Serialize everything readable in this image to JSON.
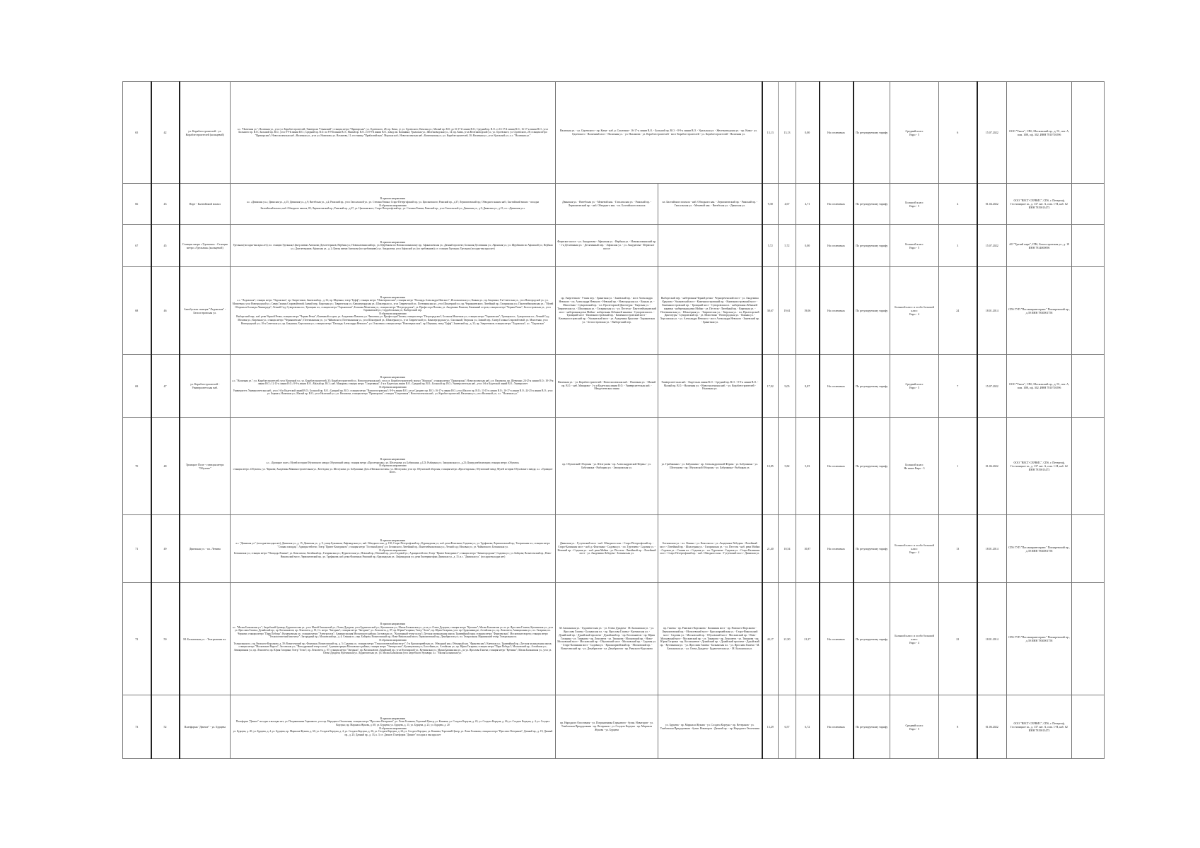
{
  "rows": [
    {
      "no": "65",
      "route": "42",
      "name": "ул. Кораблестроителей - ул. Кораблестроителей (кольцевой)",
      "path": "а.с. \"Наличная ул.\"; Наличная ул., угол ул. Кораблестроителей; Универсам \"Гаванский\"; станция метро \"Приморская\"; ул. Одоевского, 28; пр. Кима, уг. ул. Одоевского; Камская ул.; Малый пр. В.О. до 16-17-й линии В.О.; Средний пр. В.О. от 16-17-й линии В.О.; 16-17-я линии В.О., угол Большого пр. В.О.; Большой пр. В.О., угол 8-9-й линии В.О.; Средний пр. В.О. по 8-9-й линии В.О.; Малый пр. В.О. от 8-9-й линии В.О.; завод им. Калинина; Уральская ул.; Железноводская ул., 14; пр. Кима, угол Железноводской ул.; ул. Одоевского; ул. Одоевского, 28; станция метро \"Приморская\"; Новосмоленская наб.; Наличная ул., угол ул. Нахимова; ул. Нахимова, 11; гостиница \"Прибалтийская\"; Морская наб.; Новосмоленская наб.; Капитанская ул.; ул. Кораблестроителей, 30; Наличная ул., угол Уральской ул.; а.с. \"Наличная ул.\"",
      "fwd": "Наличная ул. - ул. Одоевского - пр. Кима - наб. р. Смоленки - 16-17-я линии В.О. - Большой пр. В.О. - 8-9-я линии В.О. - Уральская ул. - Железноводская ул. - пр. Кима - ул. Одоевского - Наличный мост - Наличная ул. - ул. Нахимова - ул. Кораблестроителей - мост Кораблестроителей - ул. Кораблестроителей - Наличная ул.",
      "back": "",
      "merged": true,
      "len": "13,13",
      "len_f": "13,13",
      "len_b": "0,00",
      "stops": "На остановках",
      "tariff": "По регулируемому тарифу",
      "bus_class": "Средний класс\nЕвро - 5",
      "count": "6",
      "date": "15.07.2022",
      "operator": "ООО \"Такси\", СПб, Московский пр., д. 91, лит. А, пом. 10Н, оф. 302, ИНН 7810716596"
    },
    {
      "no": "66",
      "route": "43",
      "name": "Порт - Балтийский вокзал",
      "path": "В прямом направлении\nа.с. «Двинская ул.»; Двинская ул., д.15; Двинская ул., д.9; Витебская ул., д.2; Рижский пр., угол Гапсальской ул.; ул. Степана Разина; Старо-Петергофский пр.; ул. Циолковского; Рижский пр., д.37; Лермонтовский пр.; Обводного канала наб.; Балтийский вокзал - посадка\nВ обратном направлении\nБалтийский вокзал; наб. Обводного канала, 85; Лермонтовский пр.; Рижский пр., д.37; ул. Циолковского; Старо-Петергофский пр.; ул. Степана Разина; Рижский пр., угол Гапсальской ул.; Двинская ул., д.9; Двинская ул., д.15; а.с. «Двинская ул.»",
      "fwd": "Двинская ул. - Витебская ул. - Межевой кан. - Гапсальская ул. - Рижский пр. - Лермонтовский пр. - наб. Обводного кан. - пл. Балтийского вокзала",
      "back": "пл. Балтийского вокзала - наб. Обводного кан. - Лермонтовский пр. - Рижский пр. - Гапсальская ул. - Межевой кан. - Витебская ул. - Двинская ул.",
      "merged": false,
      "len": "9,38",
      "len_f": "4,67",
      "len_b": "4,71",
      "stops": "На остановках",
      "tariff": "По регулируемому тарифу",
      "bus_class": "Большой класс\nЕвро - 5",
      "count": "4",
      "date": "01.04.2022",
      "operator": "ООО \"ВЕСТ-СЕРВИС\", СПб, г. Петергоф, Гостилицкое ш., д. 137 лит. А, пом. 1-Н, каб. 62 ИНН 7819013473"
    },
    {
      "no": "67",
      "route": "45",
      "name": "Станция метро «Удельная» - Станция метро «Удельная» (кольцевой)",
      "path": "В прямом направлении\nУдельная (посадка-высадка лет); пл. станции Удельная; Центр имени Антонова; Дом ветеранов; Вербная ул.; Новоколомяжский пр.; ул. Щербакова по Новоколомяжскому пр.; Афанасьевская ул.; Дачный проспект; Большая Десятинная ул.; Афонская ул.; ул. Щербакова по Афонской ул.; Вербная ул.; Дом ветеранов; Афонская ул., д. 2; Центр имени Антонова (по требованию); ул. Аккуратова, угол Афонской ул. (по требованию); ст. станции Удельная; Удельная (посадка-высадка нет)",
      "fwd": "Фермское шоссе - ул. Аккуратова - Афонская ул. - Вербная ул. - Новоколомяжский пр. - 1-я Десятинная ул. - Десятинный пер. - Афонская ул. - ул. Аккуратова - Фермское шоссе",
      "back": "",
      "merged": false,
      "len": "5,72",
      "len_f": "5,72",
      "len_b": "0,00",
      "stops": "На остановках",
      "tariff": "По регулируемому тарифу",
      "bus_class": "Большой класс\nЕвро - 5",
      "count": "3",
      "date": "15.07.2022",
      "operator": "АО \"Третий парк\", СПб, Белоостровская ул., д. 19 ИНН 7814000096"
    },
    {
      "no": "68",
      "route": "46",
      "name": "Автобусная станция \"Ладожская\" - Белоостровская ул.",
      "path": "В прямом направлении\nа.с. \"Ладожская\"; станция метро \"Ладожская\"; пр. Энергетиков, Заневский пр., д. 32; пр. Шаумяна, театр \"Буфф\"; станция метро \"Новочеркасская\"; станция метро \"Площадь Александра Невского\"; Исполкомская ул.; Конная ул.; пр. Бакунина; 8-я Советская ул., угол Новгородской ул.; ул. Моисеенко, угол Новгородской ул.; Сквер Галины Старовойтовой; Заячий пер.; Кирочная ул.; Таврическая ул.; Кавалергардская ул.; Шпалерная ул., угол Таврической ул.; Потемкинская ул., угол Шпалерной ул.; пр. Чернышевского; Литейный пр.; Гагаринская ул.; Пантелеймоновская ул.; \"Музей Обороны и Блокады Ленинграда\"; Летний Сад; Суворовская пл.; Троицкая пл.; станция метро \"Горьковская\"; Большая Монетная ул.; станция метро \"Петроградская\"; ул. Профессора Попова; ул. Академика Павлова; Каменный остров; станция метро \"Черная Речка\"; Белоостровская ул., угол Торжковской ул.; Сердобольская ул.; Выборгский пер.\nВ обратном направлении\nВыборгский пер.; наб. реки Черной Речки; станция метро \"Черная Речка\"; Каменный остров; ул. Академика Павлова; ул. Чапыгина; ул. Профессора Попова; станция метро \"Петроградская\"; Большая Монетная ул.; станция метро \"Горьковская\"; Троицкая пл.; Суворовская пл.; Летний Сад; Моховая ул.; Кирочная ул.; станция метро \"Чернышевская\"; Потемкинская ул.; ул. Чайковского; Потемкинская ул., угол Шпалерной ул.; Шпалерная ул., угол Таврической ул.; Кавалергардская ул.; Смольный; Тверская ул.; Заячий пер.; Сквер Галины Старовойтовой; ул. Моисеенко, угол Новгородской ул.; 10-я Советская ул.; пр. Бакунина; Херсонская ул.; станция метро \"Площадь Александра Невского\"; ул. Оскаленко; станция метро \"Новочеркасская\"; пр. Шаумяна, театр \"Буфф\"; Заневский пр., д. 32; пр. Энергетиков; станция метро \"Ладожская\"; а.с. \"Ладожская\"",
      "fwd": "пр. Энергетиков - Уткин пер. - Гранитная ул. - Заневский пр. - мост Александра Невского - пл. Александра Невского - Невский пр. - Новгородская ул. - Конная ул. - Моисеенко - Суворовский пр. - пл. Пролетарской Диктатуры - Тверская ул. - Таврическая ул. - Шпалерная ул. - Гагаринская ул. - ул. Пестеля - Пантелеймоновский мост - набережная реки Мойки - набережная Лебяжьей канавки - Суворовская пл. - Троицкий мост - Каменноостровский пр. - Каменноостровский мост - Каменноостровский пр. - Ушаковский мост - ул. Академика Крылова - Торжковская ул. - Белоостровская ул. - Выборгский пер.",
      "back": "Выборгский пер. - набережная Черной речки - Чернореченский мост - ул. Академика Крылова - Ушаковский мост - Каменноостровский пр. - Каменноостровский мост - Каменноостровский пр. - Троицкий мост - Суворовская пл. - набережная Лебяжьей канавки - набережная реки Мойки - ул. Пестеля - Литейный пр. - Кирочная ул. - Потемкинская ул. - Шпалерная ул. - Таврическая ул. - Тверская ул. - пл. Пролетарской Диктатуры - Суворовский пр. - ул. Моисеенко - Новгородская ул. - Конная ул. - Херсонская ул. - ул. Александра Невского - мост Александра Невского - Заневский пр. - Гранитная ул.",
      "merged": false,
      "len": "38,67",
      "len_f": "19,61",
      "len_b": "19,06",
      "stops": "На остановках",
      "tariff": "По регулируемому тарифу",
      "bus_class": "Большой класс и особо большой класс\nЕвро - 4",
      "count": "24",
      "date": "18.01.2014",
      "operator": "СПб ГУП \"Пассажиравтотранс\" Пискаревский пр., д.39 ИНН 7830001758"
    },
    {
      "no": "69",
      "route": "47",
      "name": "ул. Кораблестроителей - Университетская наб.",
      "path": "В прямом направлении\nа.с. \"Наличная ул.\"; ул. Кораблестроителей; угол Наличной ул.; ул. Кораблестроителей, 35; Кораблестроителей ул.; Новосмоленская наб.; угол ул. Кораблестроителей; вокзал \"Морская\"; станция метро \"Приморская\"; Новосмоленская наб.; ул. Нахимова, пр. Шевченко; 24-25-я линии В.О.; 18-19-я линии В.О.; 12-13-я линии В.О.; 8-9-я линии В.О.; Малый пр. В.О.; наб. Макарова; станция метро \"Спортивная\"; 1-я и Кадетская линии В.О.; Средний пр. В.О.; Большой пр. В.О.; Университетская наб., угол 1-й и Кадетской линий В.О.; Университет\nВ обратном направлении\nУниверситет; Университетская наб.; угол 1-й и Кадетской линий В.О.; Большой пр. В.О.; Средний пр. В.О.; станция метро \"Василеостровская\"; 8-9-я линии В.О.; угол Среднего пр. В.О.; 16-17-я линии В.О.; угол Малого пр. В.О.; 13-15-я линии В.О.; 16-17-я линии В.О.; 24-25-я линии В.О.; угол ул. Беринга; Наличная ул.; Малый пр. В.О.; угол Наличной ул.; ул. Нахимова, станция метро \"Приморская\"; станция \"Спортивная\"; Новосмоленская наб.; ул. Кораблестроителей, Наличная ул.; угол Наличной ул.; а.с. \"Наличная ул.\"",
      "fwd": "Наличная ул. - ул. Кораблестроителей - Новосмоленская наб. - Наличная ул. - Малый пр. В.О. - наб. Макарова - 1-я и Кадетская линии В.О. - Университетская наб. - Менделеевская линия",
      "back": "Университетская наб. - Кадетская линия В.О. - Средний пр. В.О. - 8-9-я линии В.О. - Малый пр. В.О. - Наличная ул. - Новосмоленская наб. - ул. Кораблестроителей - Наличная ул.",
      "merged": false,
      "len": "17,92",
      "len_f": "9,05",
      "len_b": "8,87",
      "stops": "На остановках",
      "tariff": "По регулируемому тарифу",
      "bus_class": "Средний класс\nЕвро - 5",
      "count": "7",
      "date": "15.07.2022",
      "operator": "ООО \"Такси\", СПб, Московский пр., д. 91, лит. А, пом. 10Н, оф. 302, ИНН 7810716596"
    },
    {
      "no": "70",
      "route": "48",
      "name": "Троицкое Поле - станция метро \"Обухово\"",
      "path": "В прямом направлении\nа.с. «Троицкое поле»; Музей истории Обуховского завода; Обуховский завод; станция метро «Пролетарская»; ул. Шелгунова; ул. Бабушкина, д.123; Рыбацкая ул.; Запорожская ул., д.23; Центр реабилитации; станция метро «Обухово»\nВ обратном направлении\nстанция метро «Обухово»; ул. Чернова; Академика Машиностроительная ул.; Коттеджи; ул. Шелгунова; ул. Бабушкина; Дом «Невская застава»; ул. Шелгунова; угол пр. Обуховской обороны; станция метро «Пролетарская»; Обуховский завод; Музей истории Обуховского завода; а.с. «Троицкое поле».",
      "fwd": "пр. Обуховской Обороны - ул. Шелгунова - пр. Александровской Фермы - ул. Бабушкина - Рыбацкая ул. - Запорожская ул.",
      "back": "ул. Грибакиных - ул. Бабушкина - пр. Александровской Фермы - ул. Бабушкина - ул. Шелгунова - пр. Обуховской Обороны - ул. Бабушкина - Рыбацкая ул.",
      "merged": false,
      "len": "10,85",
      "len_f": "5,82",
      "len_b": "5,03",
      "stops": "На остановках",
      "tariff": "По регулируемому тарифу",
      "bus_class": "Большой класс\nНе ниже Евро - 3",
      "count": "1",
      "date": "01.06.2022",
      "operator": "ООО \"ВЕСТ-СЕРВИС\", СПб, г. Петергоф, Гостилицкое ш., д. 137 лит. А, пом. 1-Н, каб. 62 ИНН 7819013473"
    },
    {
      "no": "71",
      "route": "49",
      "name": "Двинская ул. - пл. Ленина",
      "path": "В прямом направлении\nа.с. \"Двинская ул.\" (посадка-высадка нет); Двинская ул., д. 15; Двинская ул., д. 9; улица Бумажная; Лифляндская ул.; наб. Обводного кан., д. 150; Старо-Петергофский пр.; Курляндская ул.; наб. реки Фонтанки; Садовая ул.; ул. Труфанова; Лермонтовский пр.; Театральная пл.; станция метро \"Сенная площадь\"; Адмиралтейство; Театр \"Приют Комедианта\"; станция метро \"Гостиный двор\"; ул. Белинского; Литейный пр.; Пантелеймоновская ул.; Летний сад; Моховая ул.; ул. Чайковского; Боткинская ул.\nВ обратном направлении\nБоткинская ул.; станция метро \"Площадь Ленина\"; ул. Комсомола; Литейный пр.; Гагаринская ул.; Фурштатская ул.; Невский пр.; Невский пр., угол Садовой ул.; Адмиралтейство; Театр \"Приют Комедианта\"; станция метро \"Звенигородская\"; Садовая ул.; ул. Бойцова; Вознесенский пр.; Ново-Никольский мост; Лермонтовский пр.; ул. Труфанова; наб. реки Фонтанки; Рижский пр.; Курляндская ул.; Лифляндская ул.; река Екатерингофка; Двинская ул., д. 15; а.с. \"Двинская ул.\" (посадка-высадка нет)",
      "fwd": "Двинская ул. - Гутуевский мост - наб. Обводного кан. - Старо-Петергофский пр. - Старо-Калинкин мост - наб. р. Фонтанки - Садовая ул. - пл. Тургенева - Садовая ул. - Невский пр. - Садовая ул. - наб. реки Мойки - ул. Пестеля - Литейный пр. - Литейный мост - ул. Академика Лебедева - Боткинская ул.",
      "back": "Боткинская ул. - пл. Ленина - ул. Комсомола - ул. Академика Лебедева - Литейный мост - Литейный пр. - Шпалерная ул. - Гагаринская ул. - ул. Пестеля - наб. реки Мойки - Садовая ул. - Сенная пл. - Садовая ул. - пл. Тургенева - Садовая ул. - Старо-Калинкин мост - Старо-Петергофский пр. - наб. Обводного кан. - Гутуевский мост - Двинская ул.",
      "merged": false,
      "len": "21,40",
      "len_f": "10,54",
      "len_b": "10,87",
      "stops": "На остановках",
      "tariff": "По регулируемому тарифу",
      "bus_class": "Большой класс и особо большой класс\nЕвро - 4",
      "count": "13",
      "date": "18.01.2014",
      "operator": "СПб ГУП \"Пассажиравтотранс\" Пискаревский пр., д.39 ИНН 7830001758"
    },
    {
      "no": "72",
      "route": "50",
      "name": "М. Балканская ул. - Театральная пл.",
      "path": "В прямом направлении\nа.с. \"Малая Балканская ул.\"; Загребский бульвар; Будапештская ул., угол Малой Балканской ул.; Олеко Дундича, угол Будапештской ул.; Купчинская ул.; Малая Балканская ул., угол ул. Олеко Дундича; станция метро \"Купчино\"; Малая Балканская ул. по ул. Ярослава Гашека; Купчинская ул., угол ул. Ярослава Гашека; Дунайский пр.; пр. Космонавтов; пр. Ленсовета, д. 81; Ст. метро \"Звездная\"; станция метро \"Звездная\"; ул. Ленсовета, д. 87; пр. Юрия Гагарина; Театр \"Атом\"; пр. Юрия Гагарина, угол пр. Орджоникидзе; Алтайская ул.; пр. Ленсовета; Авиационная ул.; пл. Гагарина; пл. Чернова; станция метро \"Парк Победы\"; Кузнецовская ул.; станция метро \"Электросила\"; Администрация Московского района; Заставская ул.; \"Культурный театр-салон\"; Детская музыкальная школа; Трамвайный парк; станция метро \"Фрунзенская\"; Московские ворота; станция метро \"Технологический институт\"; Загородный пр.; Московский пр., д. 4; Сенная пл.; пер. Бойцова; Вознесенский пр.; Ново-Никольский мост; Лермонтовский пр.; Декабристов ул.; пл. Театральная; Мариинский театр; Театральная пл.\nВ обратном направлении\nТеатральная пл.; пр. Римского-Корсакова, д. 39; Вознесенский пр.; Фонтанка; Вознесенский пр., д. 5; Садовая ул.; станция метро \"Технологический институт\"; 5-я Красноармейская ул.; Обводный кан.; Обводный кан. \"Фрунзенская\"; Киевская ул.; Трамвайный пр.; Детская музыкальная школа; станция метро \"Московские Ворота\"; Заставская ул.; \"Ипподромный театр-салон\"; Администрация Московского района; станция метро \"Электросила\"; Кузнецовская ул.; Бассейная ул.; Алтайская ул.; пр. Юрия Гагарина; станция метро \"Парк Победы\"; Московский пр.; Алтайская ул.; Авиационная ул.; пр. Ленсовета; пр. Юрия Гагарина; Театр \"Атом\"; пр. Ленсовета; д. 87; станция метро \"Звездная\"; пр. Космонавтов; Дунайский пр.; угол Купчинской ул.; Купчинская ул.; Малая Балканская ул., по ул. Ярослава Гашека; станция метро \"Купчино\"; Малая Балканская ул., угол ул. Олеко Дундича; Купчинская ул.; Будапештская ул.; ул. Малая Балканская угол Загребского бульвара; а.с. \"Малая Балканская ул.\"",
      "fwd": "М. Балканская ул. - Будапештская ул. - ул. Олеко Дундича - М. Балканская ул. - ул. Ярослава Гашека - Балканская пл. - пр. Ярослава Гашека - Купчинская ул. - Дунайский пр. - Дунайский проспект - Дунайский пр. - пр. Космонавтов - пр. Юрия Гагарина - ул. Типанова - пр. Ленсовета - ул. Типанова - Московский пр. - Ново-Московский мост - Московский пр. - Обуховский мост - Московский пр. - Садовая ул. - Старо-Калинкин мост - Садовая ул. - Красноармейский пр. - Московский пр. - Вознесенский пр. - ул. Декабристов - пл. Декабристов - пр. Римского-Корсакова",
      "back": "пр. Гашека - пр. Римского-Корсакова - Калинкин мост - пр. Римского-Корсакова - Лермонтовский пр. - Могилевский мост - Красноармейская ул. - Старо-Никольский мост - Садовая ул. - Московский пр. - Обуховский мост - Московский пр. - Ново-Московский мост - Московский пр. - ул. Типанова - пр. Ленсовета - ул. Типанова - пр. Юрия Гагарина - пр. Космонавтов - Дунайский пр. - Дунайский проспект - Дунайский пр. - Купчинская ул. - ул. Ярослава Гашека - Балканская пл. - ул. Ярослава Гашека - М. Балканская ул. - ул. Олеко Дундича - Будапештская ул. - М. Балканская ул.",
      "merged": false,
      "len": "43,17",
      "len_f": "21,90",
      "len_b": "21,27",
      "stops": "На остановках",
      "tariff": "По регулируемому тарифу",
      "bus_class": "Большой класс и особо большой класс\nЕвро - 4",
      "count": "22",
      "date": "18.01.2014",
      "operator": "СПб ГУП \"Пассажиравтотранс\" Пискаревский пр., д.39 ИНН 7830001758"
    },
    {
      "no": "73",
      "route": "52",
      "name": "Платформа \"Дачное\" - ул. Бурцева",
      "path": "В прямом направлении\nПлатформа \"Дачное\" посадка и высадка нет; ул. Пограничника Гарькавого, угол пр. Народного Ополчения; станция метро \"Проспект Ветеранов\"; ул. Лени Голикова; Торговый Центр; ул. Кониева; ул. Солдата Корзуна, д. 22; ул. Солдата Корзуна, д. 26; ул. Солдата Корзуна, д. 4; ул. Солдата Корзуна; пр. Маршала Жукова, д. 60; ул. Бурцева; ул. Бурцева, д. 11; ул. Бурцева, д. 21; ул. Бурцева, д. 20\nВ обратном направлении\nул. Бурцева, д. 20; ул. Бурцева, д. 4; ул. Бурцева; пр. Маршала Жукова, д. 60; ул. Солдата Корзуна, д. 4; ул. Солдата Корзуна, д. 26; ул. Солдата Корзуна, д. 24; ул. Солдата Корзуна; ул. Кониева; Торговый Центр; ул. Лени Голикова; станция метро \"Проспект Ветеранов\"; Дачный пр., д. 19; Дачный пр., д. 25; Дачный пр., д. 33, к. 3; ст. Дачное; Платформа \"Дачное\" посадка и высадка нет",
      "fwd": "пр. Народного Ополчения - ул. Пограничника Гарькавого - бульв. Новаторов - ул. Тамбовская Придорожная - пр. Ветеранов - ул. Солдата Корзуна - пр. Маршала Жукова - ул. Бурцева",
      "back": "ул. Бурцева - пр. Маршала Жукова - ул. Солдата Корзуна - пр. Ветеранов - ул. Тамбовская Придорожная - бульв. Новаторов - Дачный пр. - пр. Народного Ополчения",
      "merged": false,
      "len": "13,29",
      "len_f": "6,57",
      "len_b": "6,72",
      "stops": "На остановках",
      "tariff": "По регулируемому тарифу",
      "bus_class": "Средний класс\nЕвро - 5",
      "count": "8",
      "date": "01.06.2022",
      "operator": "ООО \"ВЕСТ-СЕРВИС\", СПб, г. Петергоф, Гостилицкое ш., д. 137 лит. А, пом. 1-Н, каб. 62 ИНН 7819013473"
    }
  ]
}
